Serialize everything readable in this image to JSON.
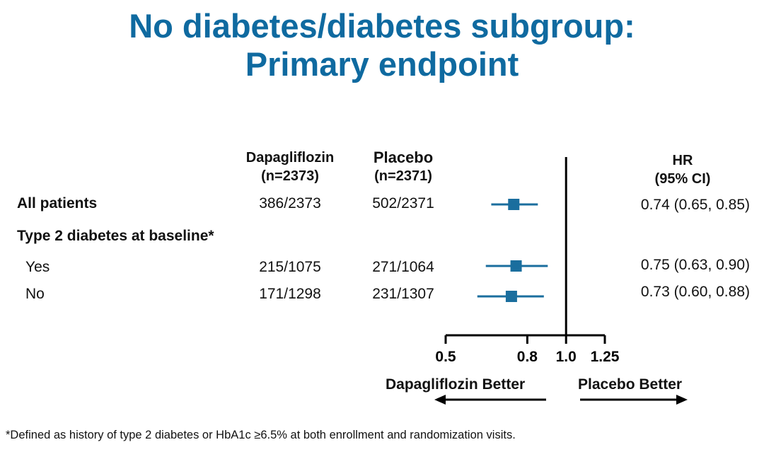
{
  "title": {
    "line1": "No diabetes/diabetes subgroup:",
    "line2": "Primary endpoint"
  },
  "columns": {
    "dapa_name": "Dapagliflozin",
    "dapa_n": "(n=2373)",
    "placebo_name": "Placebo",
    "placebo_n": "(n=2371)",
    "hr_name": "HR",
    "hr_ci": "(95% CI)"
  },
  "rows": [
    {
      "label": "All patients",
      "dapa": "386/2373",
      "placebo": "502/2371",
      "hr_text": "0.74 (0.65, 0.85)"
    },
    {
      "label": "Type 2 diabetes at baseline*"
    },
    {
      "label": "Yes",
      "dapa": "215/1075",
      "placebo": "271/1064",
      "hr_text": "0.75 (0.63, 0.90)"
    },
    {
      "label": "No",
      "dapa": "171/1298",
      "placebo": "231/1307",
      "hr_text": "0.73 (0.60, 0.88)"
    }
  ],
  "favors": {
    "left": "Dapagliflozin  Better",
    "right": "Placebo  Better"
  },
  "footnote": "*Defined as history of type 2 diabetes or HbA1c ≥6.5% at both enrollment and randomization visits.",
  "colors": {
    "title": "#0f6aa0",
    "marker": "#1a6e9e"
  },
  "chart_data": {
    "type": "forest",
    "x_scale": "log",
    "xlim": [
      0.5,
      1.25
    ],
    "reference_line": 1.0,
    "x_ticks": [
      "0.5",
      "0.8",
      "1.0",
      "1.25"
    ],
    "x_tick_values": [
      0.5,
      0.8,
      1.0,
      1.25
    ],
    "series": [
      {
        "category": "All patients",
        "hr": 0.74,
        "lower": 0.65,
        "upper": 0.85
      },
      {
        "category": "Yes",
        "hr": 0.75,
        "lower": 0.63,
        "upper": 0.9
      },
      {
        "category": "No",
        "hr": 0.73,
        "lower": 0.6,
        "upper": 0.88
      }
    ]
  }
}
